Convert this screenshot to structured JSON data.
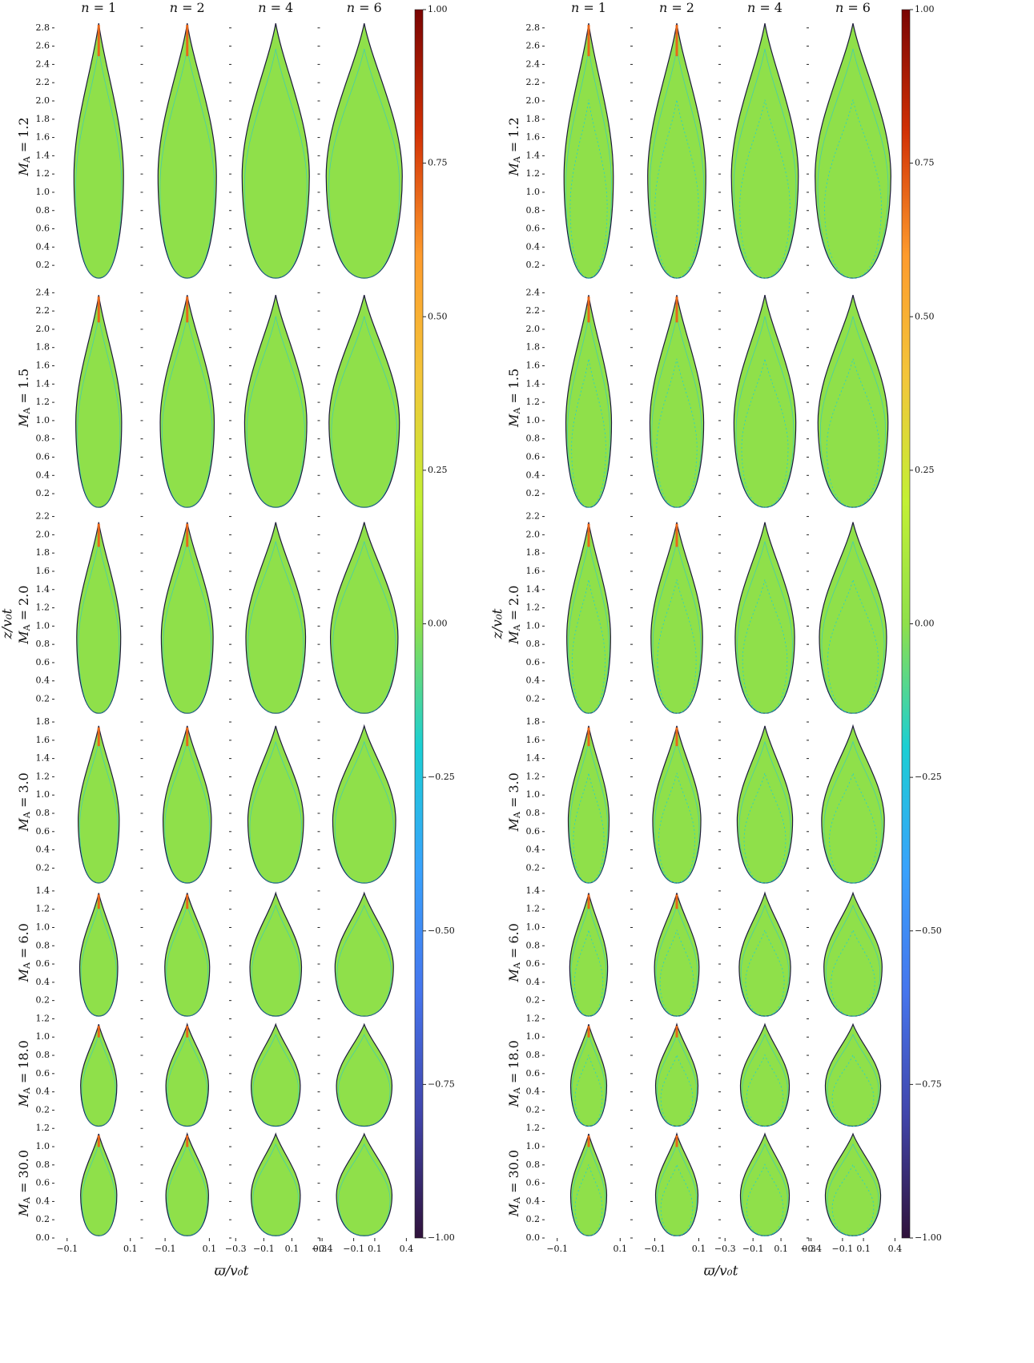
{
  "chart_data": [
    {
      "type": "image-grid",
      "column_symbol": "n",
      "relation": "=",
      "columns": [
        1,
        2,
        4,
        6
      ],
      "row_symbol": "M",
      "row_subscript": "A",
      "rows": [
        {
          "label": 1.2,
          "ylim": [
            0,
            3.0
          ],
          "yticks": [
            0.2,
            0.4,
            0.6,
            0.8,
            {
              "value": 1,
              "label": "1.0"
            },
            1.2,
            1.4,
            1.6,
            1.8,
            {
              "value": 2,
              "label": "2.0"
            },
            2.2,
            2.4,
            2.6,
            2.8
          ]
        },
        {
          "label": 1.5,
          "ylim": [
            0,
            2.5
          ],
          "yticks": [
            0.2,
            0.4,
            0.6,
            0.8,
            {
              "value": 1,
              "label": "1.0"
            },
            1.2,
            1.4,
            1.6,
            1.8,
            {
              "value": 2,
              "label": "2.0"
            },
            2.2,
            2.4
          ]
        },
        {
          "label": {
            "value": 2,
            "label": "2.0"
          },
          "ylim": [
            0,
            2.25
          ],
          "yticks": [
            0.2,
            0.4,
            0.6,
            0.8,
            {
              "value": 1,
              "label": "1.0"
            },
            1.2,
            1.4,
            1.6,
            1.8,
            {
              "value": 2,
              "label": "2.0"
            },
            2.2
          ]
        },
        {
          "label": {
            "value": 3,
            "label": "3.0"
          },
          "ylim": [
            0,
            1.85
          ],
          "yticks": [
            0.2,
            0.4,
            0.6,
            0.8,
            {
              "value": 1,
              "label": "1.0"
            },
            1.2,
            1.4,
            1.6,
            1.8
          ]
        },
        {
          "label": {
            "value": 6,
            "label": "6.0"
          },
          "ylim": [
            0,
            1.45
          ],
          "yticks": [
            0.2,
            0.4,
            0.6,
            0.8,
            {
              "value": 1,
              "label": "1.0"
            },
            1.2,
            1.4
          ]
        },
        {
          "label": {
            "value": 18,
            "label": "18.0"
          },
          "ylim": [
            0,
            1.2
          ],
          "yticks": [
            0.2,
            0.4,
            0.6,
            0.8,
            {
              "value": 1,
              "label": "1.0"
            },
            1.2
          ]
        },
        {
          "label": {
            "value": 30,
            "label": "30.0"
          },
          "ylim": [
            0,
            1.2
          ],
          "yticks": [
            {
              "value": 0,
              "label": "0.0"
            },
            0.2,
            0.4,
            0.6,
            0.8,
            {
              "value": 1,
              "label": "1.0"
            },
            1.2
          ]
        }
      ],
      "column_axes": [
        {
          "xlim": [
            -0.14,
            0.14
          ],
          "xticks": [
            {
              "value": -0.1,
              "label": "−0.1"
            },
            0.1
          ]
        },
        {
          "xlim": [
            -0.2,
            0.2
          ],
          "xticks": [
            {
              "value": -0.1,
              "label": "−0.1"
            },
            0.1
          ]
        },
        {
          "xlim": [
            -0.33,
            0.3
          ],
          "xticks": [
            {
              "value": -0.3,
              "label": "−0.3"
            },
            {
              "value": -0.1,
              "label": "−0.1"
            },
            0.1,
            0.3
          ]
        },
        {
          "xlim": [
            -0.42,
            0.42
          ],
          "xticks": [
            {
              "value": -0.4,
              "label": "−0.4"
            },
            {
              "value": -0.1,
              "label": "−0.1"
            },
            0.1,
            0.4
          ]
        }
      ],
      "xlabel": "ϖ/v₀t",
      "ylabel": "z/v₀t",
      "clim": [
        -1,
        1
      ],
      "cticks": [
        {
          "value": -1,
          "label": "−1.00"
        },
        {
          "value": -0.75,
          "label": "−0.75"
        },
        {
          "value": -0.5,
          "label": "−0.50"
        },
        {
          "value": -0.25,
          "label": "−0.25"
        },
        {
          "value": 0,
          "label": "0.00"
        },
        {
          "value": 0.25,
          "label": "0.25"
        },
        {
          "value": 0.5,
          "label": "0.50"
        },
        {
          "value": 0.75,
          "label": "0.75"
        },
        {
          "value": 1,
          "label": "1.00"
        }
      ],
      "colormap": [
        "#30123b",
        "#4145ab",
        "#4675ed",
        "#39a2fc",
        "#1bcfd4",
        "#8fe04a",
        "#c3f034",
        "#f3c63a",
        "#fe9b2d",
        "#d23105",
        "#7a0403"
      ]
    },
    {
      "type": "image-grid",
      "column_symbol": "n",
      "relation": "=",
      "columns": [
        1,
        2,
        4,
        6
      ],
      "row_symbol": "M",
      "row_subscript": "A",
      "rows": [
        {
          "label": 1.2,
          "ylim": [
            0,
            3.0
          ],
          "yticks": [
            0.2,
            0.4,
            0.6,
            0.8,
            {
              "value": 1,
              "label": "1.0"
            },
            1.2,
            1.4,
            1.6,
            1.8,
            {
              "value": 2,
              "label": "2.0"
            },
            2.2,
            2.4,
            2.6,
            2.8
          ]
        },
        {
          "label": 1.5,
          "ylim": [
            0,
            2.5
          ],
          "yticks": [
            0.2,
            0.4,
            0.6,
            0.8,
            {
              "value": 1,
              "label": "1.0"
            },
            1.2,
            1.4,
            1.6,
            1.8,
            {
              "value": 2,
              "label": "2.0"
            },
            2.2,
            2.4
          ]
        },
        {
          "label": {
            "value": 2,
            "label": "2.0"
          },
          "ylim": [
            0,
            2.25
          ],
          "yticks": [
            0.2,
            0.4,
            0.6,
            0.8,
            {
              "value": 1,
              "label": "1.0"
            },
            1.2,
            1.4,
            1.6,
            1.8,
            {
              "value": 2,
              "label": "2.0"
            },
            2.2
          ]
        },
        {
          "label": {
            "value": 3,
            "label": "3.0"
          },
          "ylim": [
            0,
            1.85
          ],
          "yticks": [
            0.2,
            0.4,
            0.6,
            0.8,
            {
              "value": 1,
              "label": "1.0"
            },
            1.2,
            1.4,
            1.6,
            1.8
          ]
        },
        {
          "label": {
            "value": 6,
            "label": "6.0"
          },
          "ylim": [
            0,
            1.45
          ],
          "yticks": [
            0.2,
            0.4,
            0.6,
            0.8,
            {
              "value": 1,
              "label": "1.0"
            },
            1.2,
            1.4
          ]
        },
        {
          "label": {
            "value": 18,
            "label": "18.0"
          },
          "ylim": [
            0,
            1.2
          ],
          "yticks": [
            0.2,
            0.4,
            0.6,
            0.8,
            {
              "value": 1,
              "label": "1.0"
            },
            1.2
          ]
        },
        {
          "label": {
            "value": 30,
            "label": "30.0"
          },
          "ylim": [
            0,
            1.2
          ],
          "yticks": [
            {
              "value": 0,
              "label": "0.0"
            },
            0.2,
            0.4,
            0.6,
            0.8,
            {
              "value": 1,
              "label": "1.0"
            },
            1.2
          ]
        }
      ],
      "column_axes": [
        {
          "xlim": [
            -0.14,
            0.14
          ],
          "xticks": [
            {
              "value": -0.1,
              "label": "−0.1"
            },
            0.1
          ]
        },
        {
          "xlim": [
            -0.2,
            0.2
          ],
          "xticks": [
            {
              "value": -0.1,
              "label": "−0.1"
            },
            0.1
          ]
        },
        {
          "xlim": [
            -0.33,
            0.3
          ],
          "xticks": [
            {
              "value": -0.3,
              "label": "−0.3"
            },
            {
              "value": -0.1,
              "label": "−0.1"
            },
            0.1,
            0.3
          ]
        },
        {
          "xlim": [
            -0.42,
            0.42
          ],
          "xticks": [
            {
              "value": -0.4,
              "label": "−0.4"
            },
            {
              "value": -0.1,
              "label": "−0.1"
            },
            0.1,
            0.4
          ]
        }
      ],
      "xlabel": "ϖ/v₀t",
      "ylabel": "z/v₀t",
      "clim": [
        -1,
        1
      ],
      "cticks": [
        {
          "value": -1,
          "label": "−1.00"
        },
        {
          "value": -0.75,
          "label": "−0.75"
        },
        {
          "value": -0.5,
          "label": "−0.50"
        },
        {
          "value": -0.25,
          "label": "−0.25"
        },
        {
          "value": 0,
          "label": "0.00"
        },
        {
          "value": 0.25,
          "label": "0.25"
        },
        {
          "value": 0.5,
          "label": "0.50"
        },
        {
          "value": 0.75,
          "label": "0.75"
        },
        {
          "value": 1,
          "label": "1.00"
        }
      ],
      "colormap": [
        "#30123b",
        "#4145ab",
        "#4675ed",
        "#39a2fc",
        "#1bcfd4",
        "#8fe04a",
        "#c3f034",
        "#f3c63a",
        "#fe9b2d",
        "#d23105",
        "#7a0403"
      ]
    }
  ]
}
